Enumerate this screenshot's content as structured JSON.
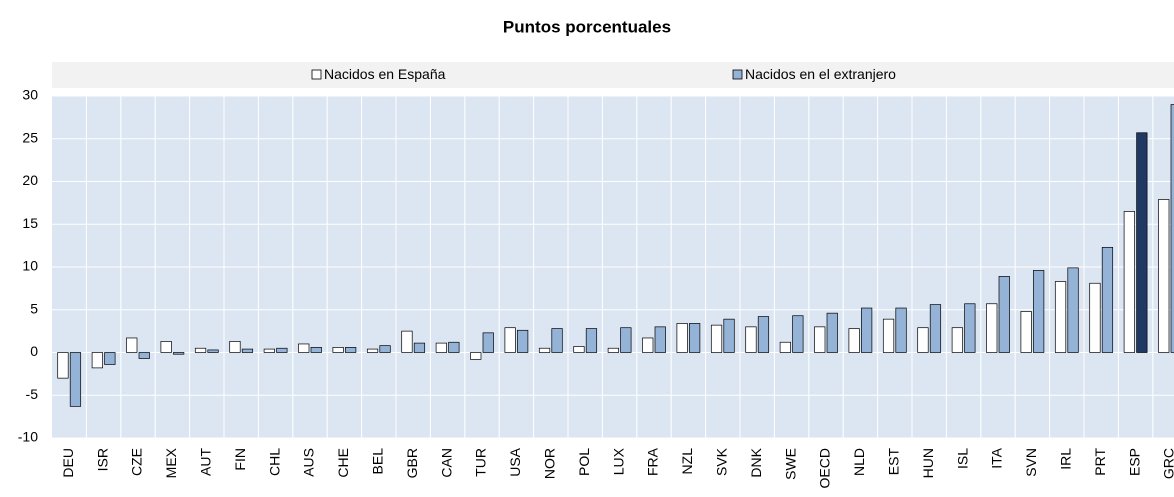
{
  "chart_data": {
    "type": "bar",
    "title": "Puntos porcentuales",
    "categories": [
      "DEU",
      "ISR",
      "CZE",
      "MEX",
      "AUT",
      "FIN",
      "CHL",
      "AUS",
      "CHE",
      "BEL",
      "GBR",
      "CAN",
      "TUR",
      "USA",
      "NOR",
      "POL",
      "LUX",
      "FRA",
      "NZL",
      "SVK",
      "DNK",
      "SWE",
      "OECD",
      "NLD",
      "EST",
      "HUN",
      "ISL",
      "ITA",
      "SVN",
      "IRL",
      "PRT",
      "ESP",
      "GRC"
    ],
    "series": [
      {
        "name": "Nacidos en España",
        "color": "#ffffff",
        "values": [
          -3.0,
          -1.8,
          1.7,
          1.3,
          0.5,
          1.3,
          0.4,
          1.0,
          0.6,
          0.4,
          2.5,
          1.1,
          -0.8,
          2.9,
          0.5,
          0.7,
          0.5,
          1.7,
          3.4,
          3.2,
          3.0,
          1.2,
          3.0,
          2.8,
          3.9,
          2.9,
          2.9,
          5.7,
          4.8,
          8.3,
          8.1,
          16.5,
          17.9
        ]
      },
      {
        "name": "Nacidos en el extranjero",
        "color": "#95b3d7",
        "values": [
          -6.3,
          -1.4,
          -0.7,
          -0.2,
          0.3,
          0.4,
          0.5,
          0.6,
          0.6,
          0.8,
          1.1,
          1.2,
          2.3,
          2.6,
          2.8,
          2.8,
          2.9,
          3.0,
          3.4,
          3.9,
          4.2,
          4.3,
          4.6,
          5.2,
          5.2,
          5.6,
          5.7,
          8.9,
          9.6,
          9.9,
          12.3,
          25.7,
          29.0
        ],
        "highlight": {
          "category": "ESP",
          "color": "#203864"
        }
      }
    ],
    "ylim": [
      -10,
      30
    ],
    "yticks": [
      -10,
      -5,
      0,
      5,
      10,
      15,
      20,
      25,
      30
    ],
    "grid": true,
    "legend": "top"
  }
}
